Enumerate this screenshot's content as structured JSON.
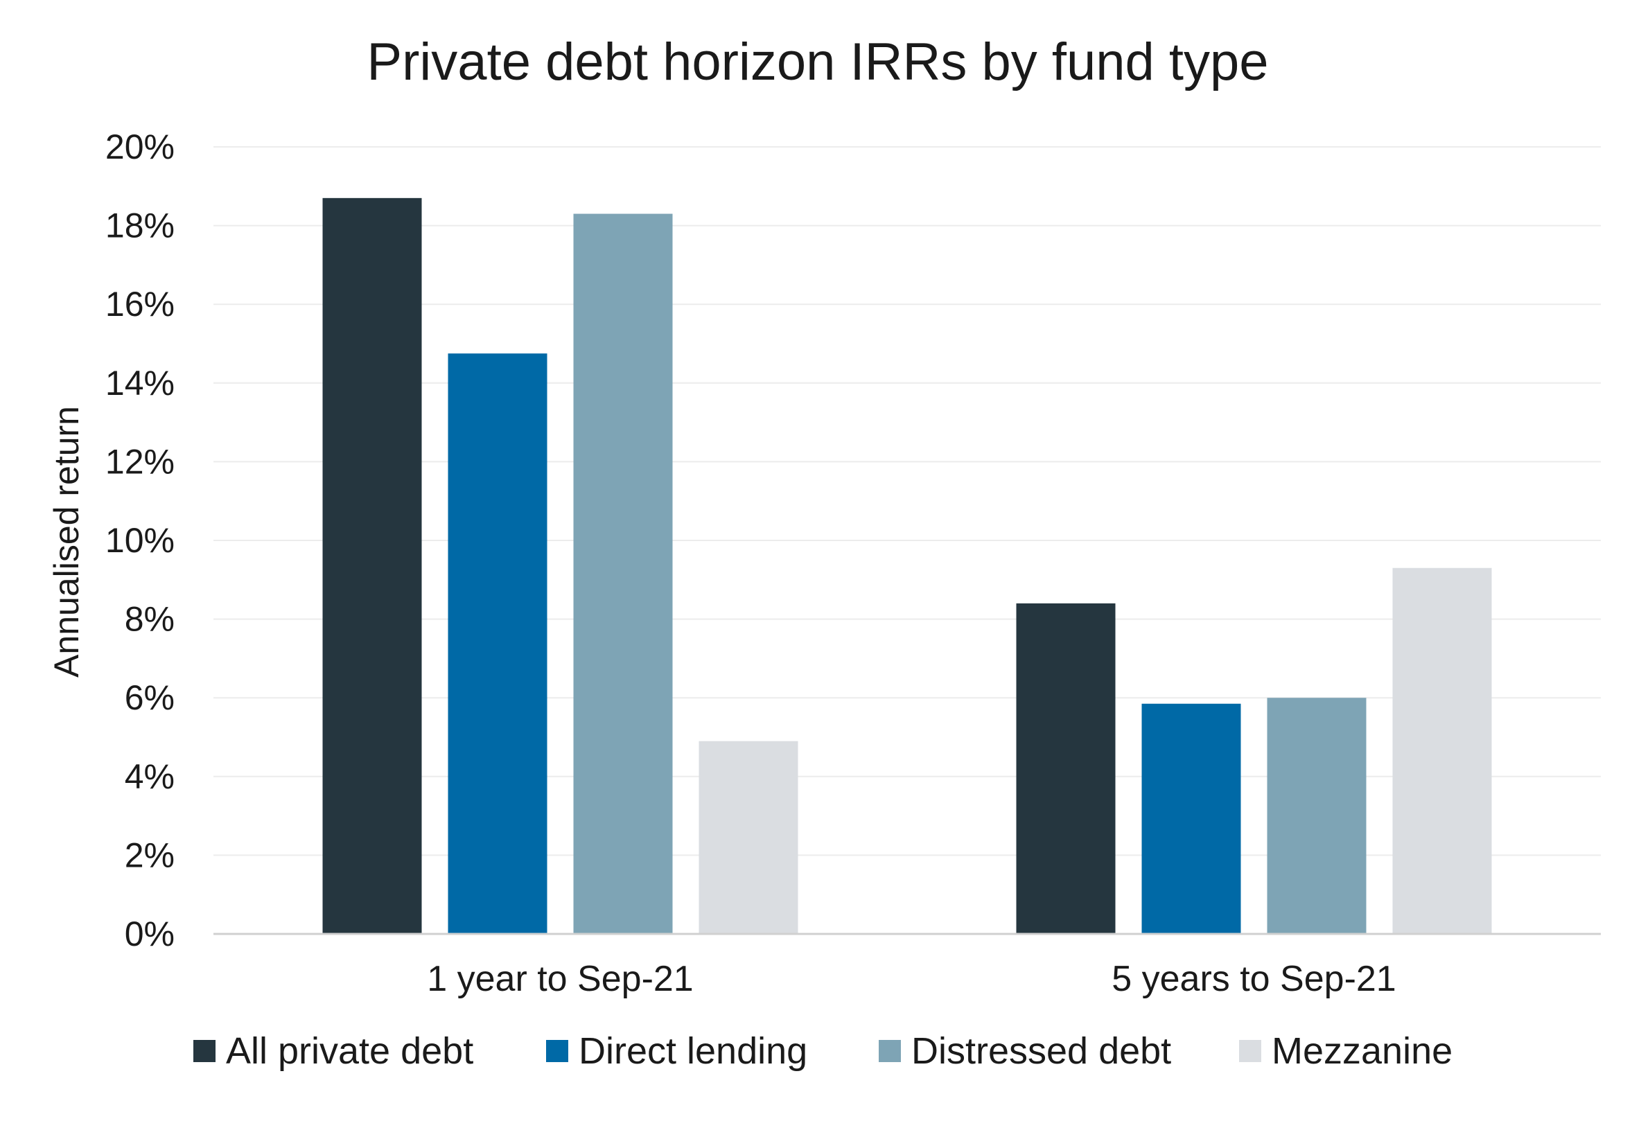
{
  "chart_data": {
    "type": "bar",
    "title": "Private debt horizon IRRs by fund type",
    "xlabel": "",
    "ylabel": "Annualised return",
    "categories": [
      "1 year to Sep-21",
      "5 years to Sep-21"
    ],
    "series": [
      {
        "name": "All private debt",
        "color": "#25363f",
        "values": [
          18.7,
          8.4
        ]
      },
      {
        "name": "Direct lending",
        "color": "#0069a6",
        "values": [
          14.75,
          5.85
        ]
      },
      {
        "name": "Distressed debt",
        "color": "#7ea4b5",
        "values": [
          18.3,
          6.0
        ]
      },
      {
        "name": "Mezzanine",
        "color": "#dadde1",
        "values": [
          4.9,
          9.3
        ]
      }
    ],
    "ylim": [
      0,
      20
    ],
    "yticks": [
      "0%",
      "2%",
      "4%",
      "6%",
      "8%",
      "10%",
      "12%",
      "14%",
      "16%",
      "18%",
      "20%"
    ],
    "grid": true,
    "legend": "bottom"
  }
}
